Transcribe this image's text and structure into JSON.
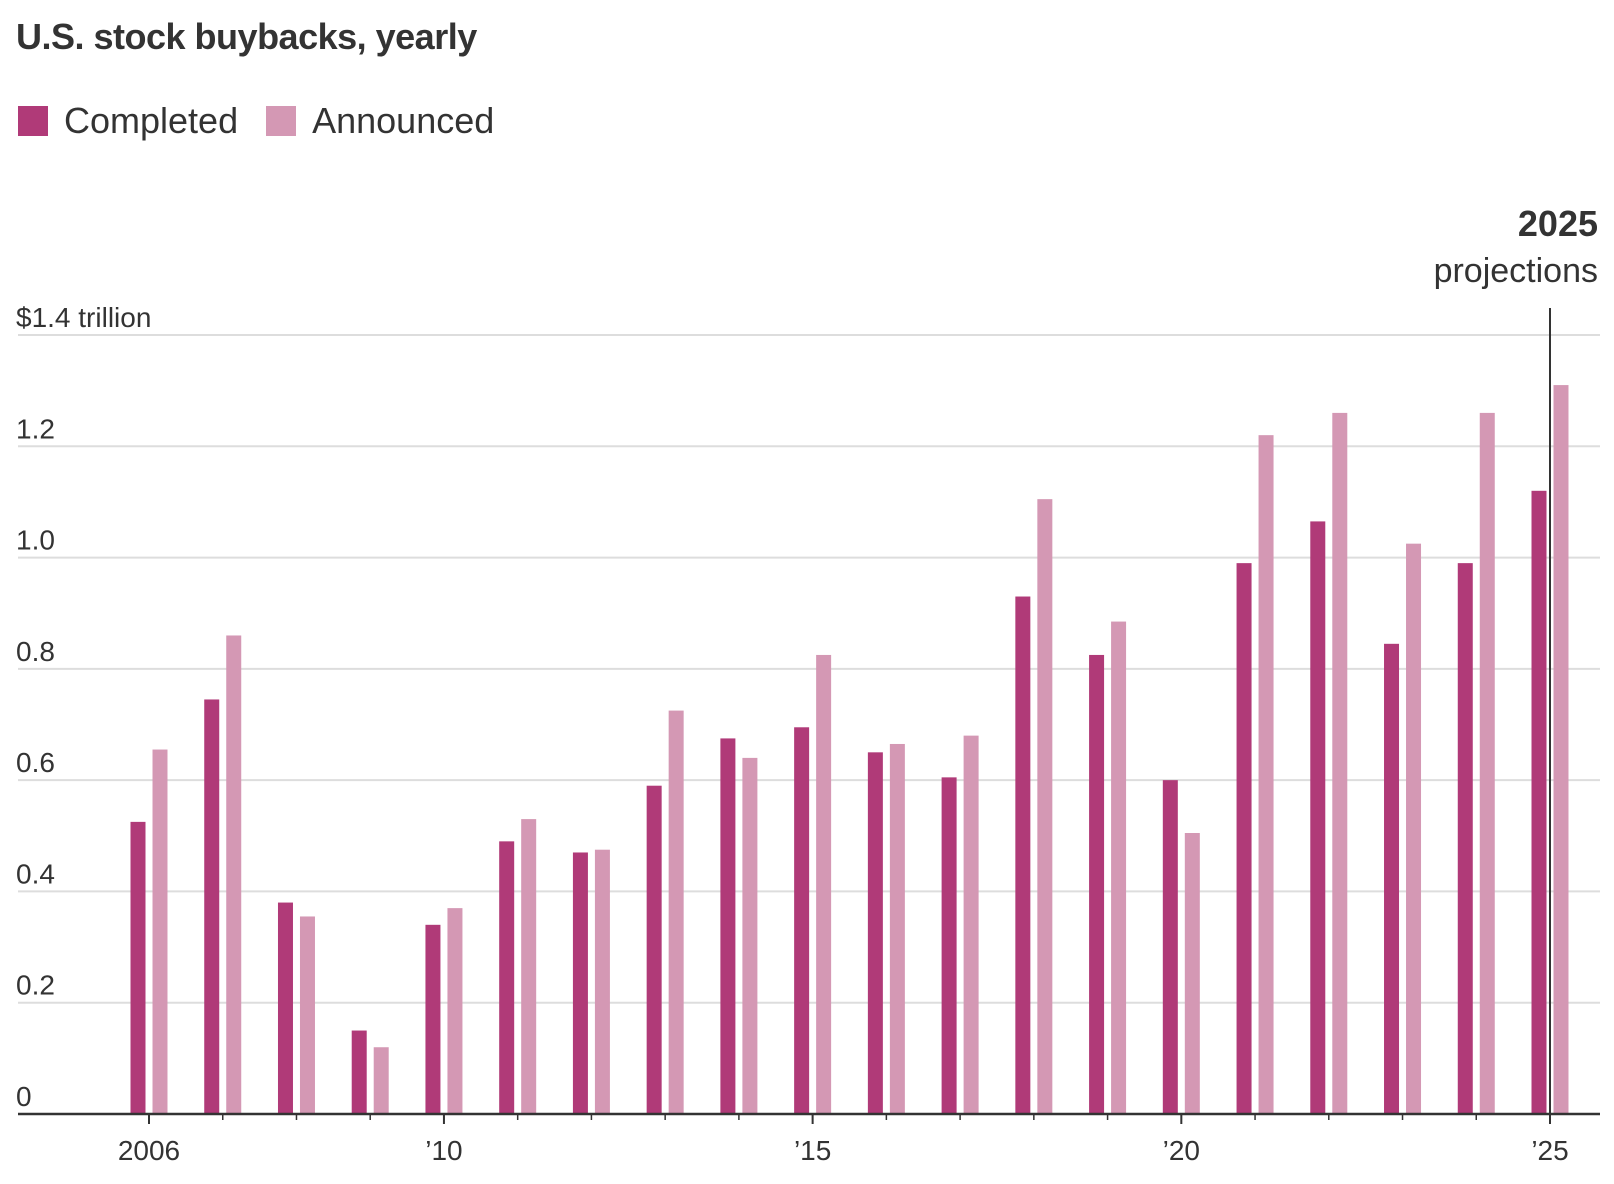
{
  "colors": {
    "completed": "#b03a78",
    "announced": "#d498b4",
    "grid": "#dddddd",
    "axis": "#333333",
    "text": "#333333"
  },
  "chart_data": {
    "type": "bar",
    "title": "U.S. stock buybacks, yearly",
    "ylabel": "",
    "xlabel": "",
    "ylim": [
      0,
      1.4
    ],
    "y_ticks": [
      0,
      0.2,
      0.4,
      0.6,
      0.8,
      1.0,
      1.2,
      1.4
    ],
    "y_tick_labels": [
      "0",
      "0.2",
      "0.4",
      "0.6",
      "0.8",
      "1.0",
      "1.2",
      "$1.4 trillion"
    ],
    "categories": [
      2006,
      2007,
      2008,
      2009,
      2010,
      2011,
      2012,
      2013,
      2014,
      2015,
      2016,
      2017,
      2018,
      2019,
      2020,
      2021,
      2022,
      2023,
      2024,
      2025
    ],
    "x_tick_labels": [
      {
        "year": 2006,
        "label": "2006"
      },
      {
        "year": 2010,
        "label": "’10"
      },
      {
        "year": 2015,
        "label": "’15"
      },
      {
        "year": 2020,
        "label": "’20"
      },
      {
        "year": 2025,
        "label": "’25"
      }
    ],
    "series": [
      {
        "name": "Completed",
        "values": [
          0.525,
          0.745,
          0.38,
          0.15,
          0.34,
          0.49,
          0.47,
          0.59,
          0.675,
          0.695,
          0.65,
          0.605,
          0.93,
          0.825,
          0.6,
          0.99,
          1.065,
          0.845,
          0.99,
          1.12
        ]
      },
      {
        "name": "Announced",
        "values": [
          0.655,
          0.86,
          0.355,
          0.12,
          0.37,
          0.53,
          0.475,
          0.725,
          0.64,
          0.825,
          0.665,
          0.68,
          1.105,
          0.885,
          0.505,
          1.22,
          1.26,
          1.025,
          1.26,
          1.31
        ]
      }
    ],
    "legend": [
      "Completed",
      "Announced"
    ],
    "legend_position": "top-left",
    "grid": true,
    "annotation": {
      "year": 2025,
      "label_bold": "2025",
      "label": "projections"
    }
  }
}
